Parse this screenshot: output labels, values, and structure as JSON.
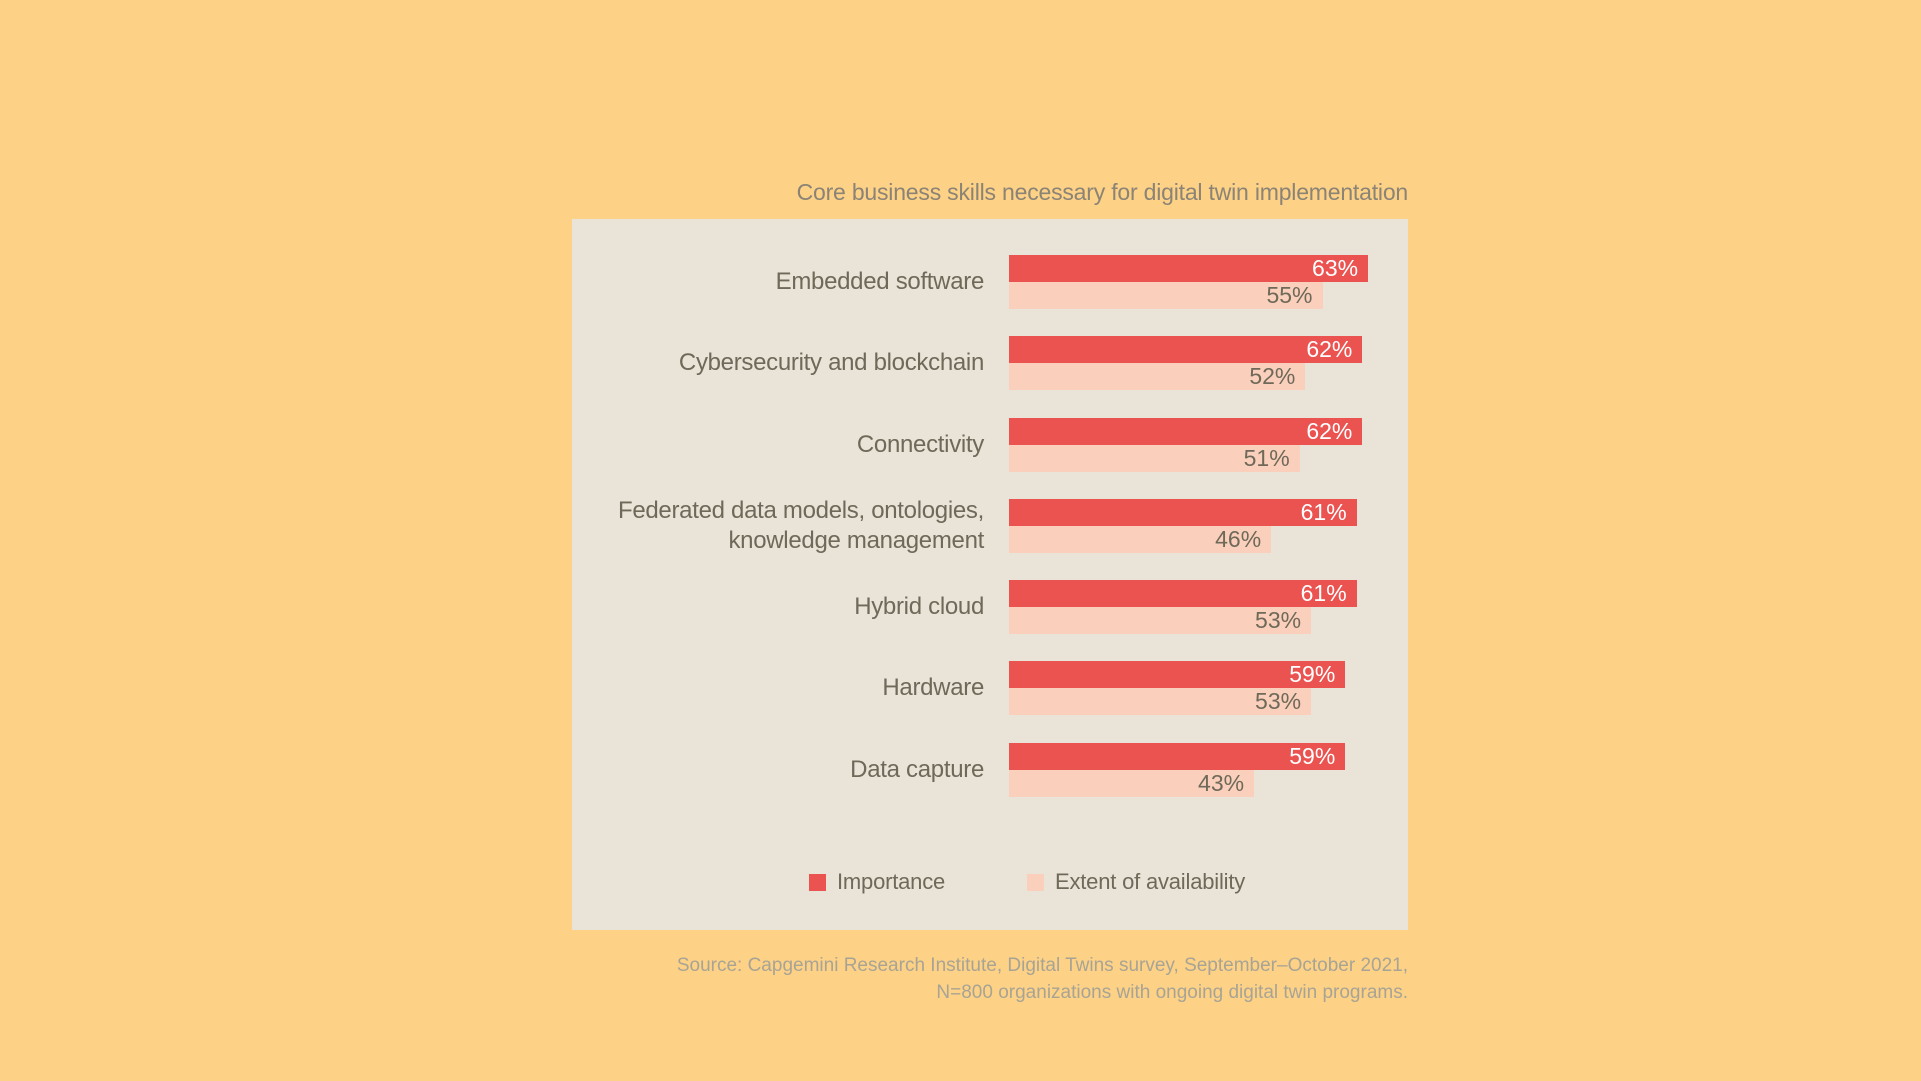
{
  "title": "Core business skills necessary for digital twin implementation",
  "source": {
    "line1": "Source: Capgemini Research Institute, Digital Twins survey, September–October 2021,",
    "line2": "N=800 organizations with ongoing digital twin programs."
  },
  "legend": {
    "items": [
      {
        "label": "Importance",
        "color": "#EA5350"
      },
      {
        "label": "Extent of availability",
        "color": "#FAD0BC"
      }
    ]
  },
  "colors": {
    "background": "#FDD186",
    "panel": "#EAE3D8",
    "importance_bar": "#EA5350",
    "availability_bar": "#FAD0BC",
    "title_text": "#8A8376",
    "label_text": "#6F6959",
    "importance_value_text": "#FFFFFF",
    "availability_value_text": "#6F6959",
    "source_text": "#A8A495"
  },
  "chart_data": {
    "type": "bar",
    "orientation": "horizontal",
    "title": "Core business skills necessary for digital twin implementation",
    "categories": [
      [
        "Embedded software"
      ],
      [
        "Cybersecurity and blockchain"
      ],
      [
        "Connectivity"
      ],
      [
        "Federated data models, ontologies,",
        "knowledge management"
      ],
      [
        "Hybrid cloud"
      ],
      [
        "Hardware"
      ],
      [
        "Data capture"
      ]
    ],
    "series": [
      {
        "name": "Importance",
        "values": [
          63,
          62,
          62,
          61,
          61,
          59,
          59
        ],
        "color": "#EA5350"
      },
      {
        "name": "Extent of availability",
        "values": [
          55,
          52,
          51,
          46,
          53,
          53,
          43
        ],
        "color": "#FAD0BC"
      }
    ],
    "value_suffix": "%",
    "xlim": [
      0,
      70
    ],
    "grid": false,
    "value_labels": "inside-end",
    "legend_position": "bottom-inside"
  }
}
